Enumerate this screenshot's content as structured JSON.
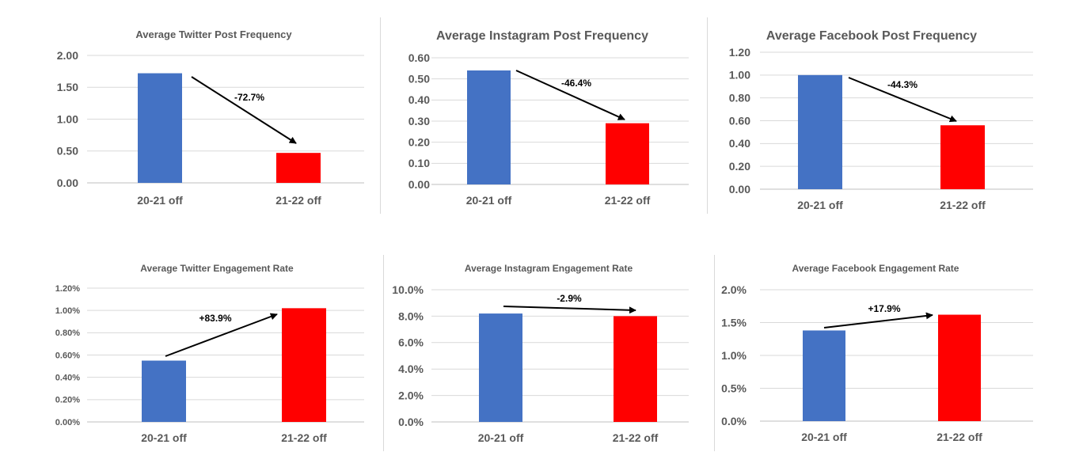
{
  "colors": {
    "bar_2021": "#4472C4",
    "bar_2122": "#FF0000",
    "grid": "#D9D9D9",
    "text": "#595959",
    "arrow": "#000000"
  },
  "chart_data": [
    {
      "type": "bar",
      "title": "Average Twitter Post Frequency",
      "categories": [
        "20-21 off",
        "21-22 off"
      ],
      "values": [
        1.72,
        0.47
      ],
      "ylim": [
        0,
        2
      ],
      "yticks": [
        "0.00",
        "0.50",
        "1.00",
        "1.50",
        "2.00"
      ],
      "annotation": "-72.7%",
      "grid": true
    },
    {
      "type": "bar",
      "title": "Average Instagram Post Frequency",
      "categories": [
        "20-21 off",
        "21-22 off"
      ],
      "values": [
        0.54,
        0.29
      ],
      "ylim": [
        0,
        0.6
      ],
      "yticks": [
        "0.00",
        "0.10",
        "0.20",
        "0.30",
        "0.40",
        "0.50",
        "0.60"
      ],
      "annotation": "-46.4%",
      "grid": true
    },
    {
      "type": "bar",
      "title": "Average Facebook Post Frequency",
      "categories": [
        "20-21 off",
        "21-22 off"
      ],
      "values": [
        1.0,
        0.56
      ],
      "ylim": [
        0,
        1.2
      ],
      "yticks": [
        "0.00",
        "0.20",
        "0.40",
        "0.60",
        "0.80",
        "1.00",
        "1.20"
      ],
      "annotation": "-44.3%",
      "grid": true
    },
    {
      "type": "bar",
      "title": "Average Twitter Engagement Rate",
      "categories": [
        "20-21 off",
        "21-22 off"
      ],
      "values": [
        0.55,
        1.02
      ],
      "ylim": [
        0,
        1.2
      ],
      "yticks": [
        "0.00%",
        "0.20%",
        "0.40%",
        "0.60%",
        "0.80%",
        "1.00%",
        "1.20%"
      ],
      "annotation": "+83.9%",
      "grid": true
    },
    {
      "type": "bar",
      "title": "Average Instagram Engagement Rate",
      "categories": [
        "20-21 off",
        "21-22 off"
      ],
      "values": [
        8.2,
        8.0
      ],
      "ylim": [
        0,
        10
      ],
      "yticks": [
        "0.0%",
        "2.0%",
        "4.0%",
        "6.0%",
        "8.0%",
        "10.0%"
      ],
      "annotation": "-2.9%",
      "grid": true
    },
    {
      "type": "bar",
      "title": "Average Facebook Engagement Rate",
      "categories": [
        "20-21 off",
        "21-22 off"
      ],
      "values": [
        1.38,
        1.62
      ],
      "ylim": [
        0,
        2
      ],
      "yticks": [
        "0.0%",
        "0.5%",
        "1.0%",
        "1.5%",
        "2.0%"
      ],
      "annotation": "+17.9%",
      "grid": true
    }
  ]
}
